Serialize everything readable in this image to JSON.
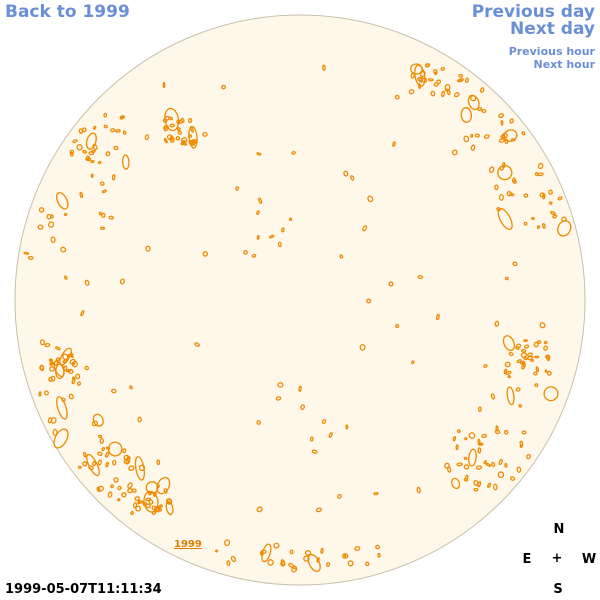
{
  "nav": {
    "back": "Back to 1999",
    "previous_day": "Previous day",
    "next_day": "Next day",
    "previous_hour": "Previous hour",
    "next_hour": "Next hour"
  },
  "disk_label": "1999",
  "compass": {
    "north": "N",
    "south": "S",
    "east": "E",
    "west": "W",
    "center": "+"
  },
  "timestamp": "1999-05-07T11:11:34",
  "colors": {
    "link": "#6b8fd6",
    "disk_fill": "#fdf8ea",
    "disk_edge": "#c9c0aa",
    "contour": "#f08a00"
  }
}
